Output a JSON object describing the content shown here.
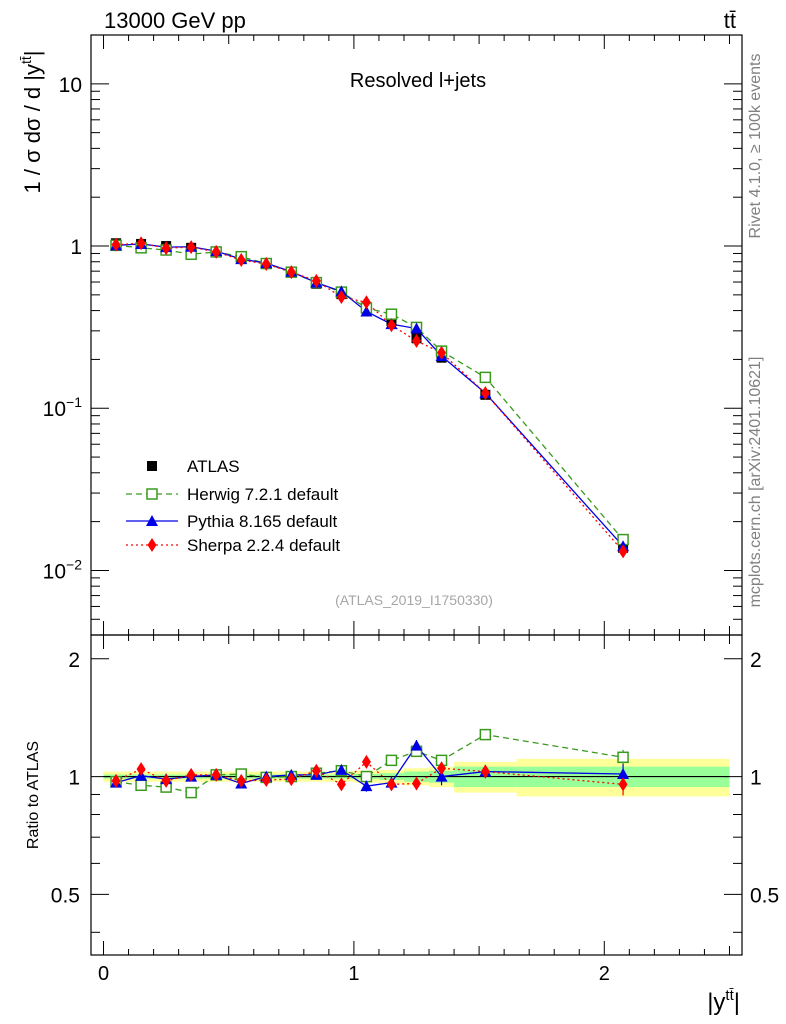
{
  "header": {
    "energy_label": "13000 GeV pp",
    "process_label": "tt̄"
  },
  "side_labels": {
    "rivet": "Rivet 4.1.0, ≥ 100k events",
    "mcplots": "mcplots.cern.ch [arXiv:2401.10621]"
  },
  "chart_data": {
    "type": "line",
    "title": "Resolved l+jets",
    "analysis_id": "(ATLAS_2019_I1750330)",
    "xlabel": "|y^tt̄|",
    "ylabel": "1 / σ dσ / d |y^tt̄|",
    "ratio_ylabel": "Ratio to ATLAS",
    "xlim": [
      -0.05,
      2.55
    ],
    "ylim": [
      0.004,
      20
    ],
    "ylog": true,
    "ratio_ylim": [
      0.35,
      2.3
    ],
    "x_ticks": [
      0,
      1,
      2
    ],
    "x_tick_labels": [
      "0",
      "1",
      "2"
    ],
    "y_ticks": [
      0.01,
      0.1,
      1,
      10
    ],
    "y_tick_labels": [
      {
        "base": "10",
        "exp": "−2"
      },
      {
        "base": "10",
        "exp": "−1"
      },
      {
        "base": "1",
        "exp": ""
      },
      {
        "base": "10",
        "exp": ""
      }
    ],
    "ratio_ticks": [
      0.5,
      1,
      2
    ],
    "ratio_tick_labels": [
      "0.5",
      "1",
      "2"
    ],
    "bin_edges": [
      0,
      0.1,
      0.2,
      0.3,
      0.4,
      0.5,
      0.6,
      0.7,
      0.8,
      0.9,
      1.0,
      1.1,
      1.2,
      1.3,
      1.4,
      1.65,
      2.5
    ],
    "x": [
      0.05,
      0.15,
      0.25,
      0.35,
      0.45,
      0.55,
      0.65,
      0.75,
      0.85,
      0.95,
      1.05,
      1.15,
      1.25,
      1.35,
      1.525,
      2.075
    ],
    "data_uncertainty": {
      "stat": [
        0.012,
        0.012,
        0.012,
        0.012,
        0.012,
        0.012,
        0.012,
        0.012,
        0.012,
        0.012,
        0.015,
        0.02,
        0.03,
        0.035,
        0.06,
        0.06
      ],
      "total": [
        0.03,
        0.03,
        0.03,
        0.03,
        0.03,
        0.03,
        0.03,
        0.03,
        0.03,
        0.03,
        0.035,
        0.04,
        0.05,
        0.06,
        0.09,
        0.11
      ]
    },
    "series": [
      {
        "name": "ATLAS",
        "color": "#000000",
        "marker": "square-filled",
        "values": [
          1.04,
          1.03,
          1.0,
          0.975,
          0.915,
          0.845,
          0.785,
          0.69,
          0.585,
          0.505,
          0.415,
          0.345,
          0.27,
          0.205,
          0.121,
          0.0138
        ],
        "ratio": [
          1,
          1,
          1,
          1,
          1,
          1,
          1,
          1,
          1,
          1,
          1,
          1,
          1,
          1,
          1,
          1
        ]
      },
      {
        "name": "Herwig 7.2.1 default",
        "color": "#3a9a1e",
        "marker": "square-open",
        "line": "dashed",
        "values": [
          1.01,
          0.975,
          0.945,
          0.89,
          0.92,
          0.86,
          0.78,
          0.69,
          0.595,
          0.52,
          0.415,
          0.38,
          0.315,
          0.225,
          0.155,
          0.0155
        ],
        "ratio": [
          0.97,
          0.95,
          0.94,
          0.91,
          1.01,
          1.015,
          0.995,
          1.0,
          1.02,
          1.035,
          1.0,
          1.1,
          1.16,
          1.1,
          1.28,
          1.12
        ],
        "ratio_err": [
          0.012,
          0.012,
          0.012,
          0.012,
          0.012,
          0.012,
          0.012,
          0.015,
          0.015,
          0.018,
          0.02,
          0.025,
          0.03,
          0.03,
          0.03,
          0.05
        ]
      },
      {
        "name": "Pythia 8.165 default",
        "color": "#0000e6",
        "marker": "triangle-filled",
        "line": "solid",
        "values": [
          1.01,
          1.03,
          0.985,
          0.99,
          0.93,
          0.83,
          0.785,
          0.695,
          0.595,
          0.525,
          0.395,
          0.33,
          0.31,
          0.21,
          0.124,
          0.0141
        ],
        "ratio": [
          0.965,
          1.005,
          0.985,
          1.0,
          1.01,
          0.96,
          1.0,
          1.01,
          1.01,
          1.04,
          0.945,
          0.965,
          1.2,
          1.0,
          1.03,
          1.015
        ],
        "ratio_err": [
          0.012,
          0.012,
          0.012,
          0.012,
          0.012,
          0.015,
          0.015,
          0.015,
          0.02,
          0.025,
          0.03,
          0.035,
          0.04,
          0.05,
          0.04,
          0.06
        ]
      },
      {
        "name": "Sherpa 2.2.4 default",
        "color": "#ff0000",
        "marker": "diamond-filled",
        "line": "dotted",
        "values": [
          1.02,
          1.04,
          0.97,
          0.985,
          0.92,
          0.82,
          0.775,
          0.69,
          0.61,
          0.485,
          0.45,
          0.325,
          0.26,
          0.22,
          0.124,
          0.0131
        ],
        "ratio": [
          0.975,
          1.045,
          0.975,
          1.01,
          1.01,
          0.975,
          0.98,
          0.985,
          1.035,
          0.955,
          1.09,
          0.955,
          0.96,
          1.05,
          1.03,
          0.955
        ],
        "ratio_err": [
          0.012,
          0.012,
          0.012,
          0.012,
          0.012,
          0.015,
          0.015,
          0.015,
          0.02,
          0.025,
          0.025,
          0.03,
          0.035,
          0.04,
          0.04,
          0.06
        ]
      }
    ]
  }
}
